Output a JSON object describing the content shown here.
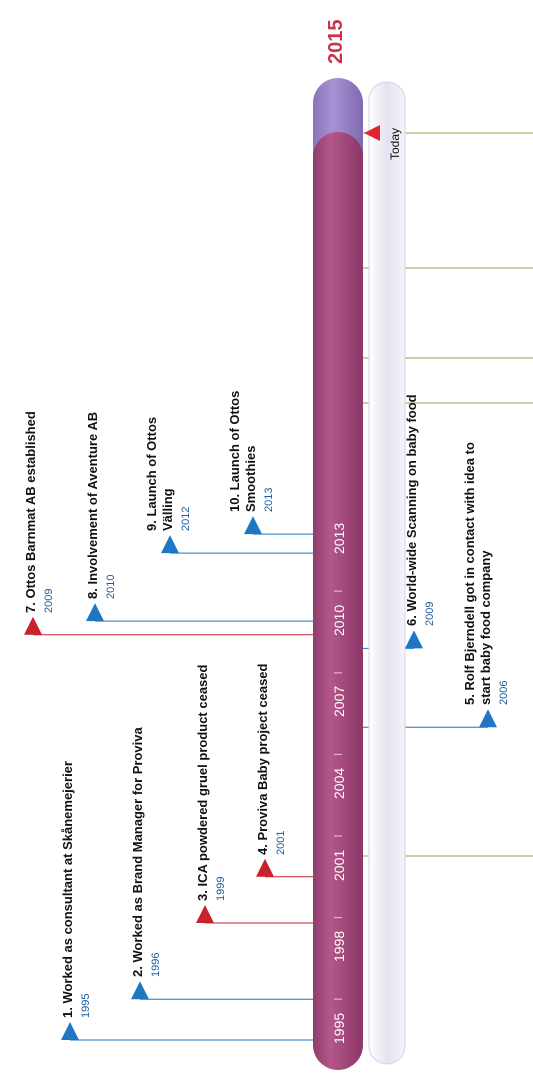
{
  "end_year": "2015",
  "today_label": "Today",
  "year_ticks": [
    {
      "label": "1995",
      "value": 1995
    },
    {
      "label": "1998",
      "value": 1998
    },
    {
      "label": "2001",
      "value": 2001
    },
    {
      "label": "2004",
      "value": 2004
    },
    {
      "label": "2007",
      "value": 2007
    },
    {
      "label": "2010",
      "value": 2010
    },
    {
      "label": "2013",
      "value": 2013
    }
  ],
  "events": [
    {
      "id": 1,
      "text": "1. Worked as consultant at Skånemejerier",
      "year": "1995",
      "value": 1995.0,
      "color": "#1f77c4",
      "side": "left"
    },
    {
      "id": 2,
      "text": "2. Worked as Brand Manager for Proviva",
      "year": "1996",
      "value": 1996.5,
      "color": "#1f77c4",
      "side": "left"
    },
    {
      "id": 3,
      "text": "3. ICA powdered gruel product ceased",
      "year": "1999",
      "value": 1999.3,
      "color": "#c8232c",
      "side": "left"
    },
    {
      "id": 4,
      "text": "4. Proviva Baby project ceased",
      "year": "2001",
      "value": 2001.0,
      "color": "#c8232c",
      "side": "left"
    },
    {
      "id": 5,
      "lines": [
        "5. Rolf Bjerndell got in contact with idea to",
        "start baby food company"
      ],
      "year": "2006",
      "value": 2006.5,
      "color": "#1f77c4",
      "side": "right"
    },
    {
      "id": 6,
      "text": "6. World-wide Scanning on baby food",
      "year": "2009",
      "value": 2009.4,
      "color": "#1f77c4",
      "side": "right"
    },
    {
      "id": 7,
      "text": "7. Ottos Barnmat AB established",
      "year": "2009",
      "value": 2009.9,
      "color": "#c8232c",
      "side": "left"
    },
    {
      "id": 8,
      "text": "8. Involvement of Aventure AB",
      "year": "2010",
      "value": 2010.4,
      "color": "#1f77c4",
      "side": "left"
    },
    {
      "id": 9,
      "lines": [
        "9. Launch of Ottos",
        "Välling"
      ],
      "year": "2012",
      "value": 2012.9,
      "color": "#1f77c4",
      "side": "left"
    },
    {
      "id": 10,
      "lines": [
        "10. Launch of Ottos",
        "Smoothies"
      ],
      "year": "2013",
      "value": 2013.6,
      "color": "#1f77c4",
      "side": "left"
    }
  ],
  "colors": {
    "bar": "#a34a7c",
    "bar_top": "#9a7fc4",
    "track": "#ece8f4",
    "end_label": "#c8324a",
    "olive": "#9aa040"
  }
}
